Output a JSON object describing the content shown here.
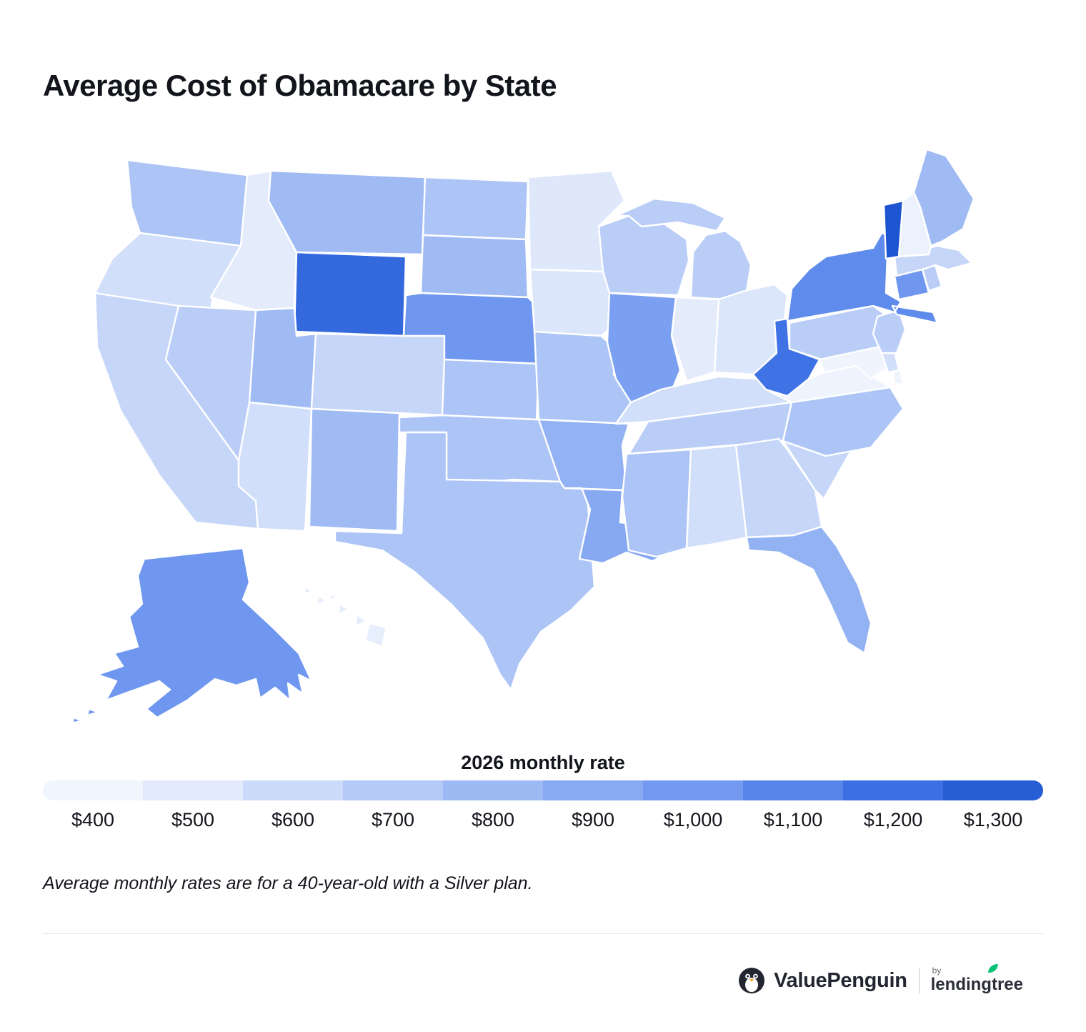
{
  "title": "Average Cost of Obamacare by State",
  "legend": {
    "title": "2026 monthly rate"
  },
  "footnote": "Average monthly rates are for a 40-year-old with a Silver plan.",
  "logo": {
    "brand": "ValuePenguin",
    "by": "by",
    "partner": "lendingtree"
  },
  "chart_data": {
    "type": "heatmap",
    "subtype": "us-choropleth",
    "title": "Average Cost of Obamacare by State",
    "legend_title": "2026 monthly rate",
    "value_unit": "USD per month",
    "scale": {
      "min": 400,
      "max": 1300,
      "tick_labels": [
        "$400",
        "$500",
        "$600",
        "$700",
        "$800",
        "$900",
        "$1,000",
        "$1,100",
        "$1,200",
        "$1,300"
      ],
      "low_color": "#f8fafe",
      "high_color": "#1d55d0"
    },
    "states": [
      {
        "abbr": "AL",
        "name": "Alabama",
        "value": 600
      },
      {
        "abbr": "AK",
        "name": "Alaska",
        "value": 1000
      },
      {
        "abbr": "AZ",
        "name": "Arizona",
        "value": 600
      },
      {
        "abbr": "AR",
        "name": "Arkansas",
        "value": 850
      },
      {
        "abbr": "CA",
        "name": "California",
        "value": 650
      },
      {
        "abbr": "CO",
        "name": "Colorado",
        "value": 650
      },
      {
        "abbr": "CT",
        "name": "Connecticut",
        "value": 1000
      },
      {
        "abbr": "DE",
        "name": "Delaware",
        "value": 600
      },
      {
        "abbr": "FL",
        "name": "Florida",
        "value": 850
      },
      {
        "abbr": "GA",
        "name": "Georgia",
        "value": 650
      },
      {
        "abbr": "HI",
        "name": "Hawaii",
        "value": 500
      },
      {
        "abbr": "ID",
        "name": "Idaho",
        "value": 520
      },
      {
        "abbr": "IL",
        "name": "Illinois",
        "value": 950
      },
      {
        "abbr": "IN",
        "name": "Indiana",
        "value": 520
      },
      {
        "abbr": "IA",
        "name": "Iowa",
        "value": 560
      },
      {
        "abbr": "KS",
        "name": "Kansas",
        "value": 750
      },
      {
        "abbr": "KY",
        "name": "Kentucky",
        "value": 600
      },
      {
        "abbr": "LA",
        "name": "Louisiana",
        "value": 900
      },
      {
        "abbr": "ME",
        "name": "Maine",
        "value": 800
      },
      {
        "abbr": "MD",
        "name": "Maryland",
        "value": 450
      },
      {
        "abbr": "MA",
        "name": "Massachusetts",
        "value": 650
      },
      {
        "abbr": "MI",
        "name": "Michigan",
        "value": 700
      },
      {
        "abbr": "MN",
        "name": "Minnesota",
        "value": 550
      },
      {
        "abbr": "MS",
        "name": "Mississippi",
        "value": 750
      },
      {
        "abbr": "MO",
        "name": "Missouri",
        "value": 750
      },
      {
        "abbr": "MT",
        "name": "Montana",
        "value": 800
      },
      {
        "abbr": "NE",
        "name": "Nebraska",
        "value": 1000
      },
      {
        "abbr": "NV",
        "name": "Nevada",
        "value": 700
      },
      {
        "abbr": "NH",
        "name": "New Hampshire",
        "value": 470
      },
      {
        "abbr": "NJ",
        "name": "New Jersey",
        "value": 700
      },
      {
        "abbr": "NM",
        "name": "New Mexico",
        "value": 800
      },
      {
        "abbr": "NY",
        "name": "New York",
        "value": 1050
      },
      {
        "abbr": "NC",
        "name": "North Carolina",
        "value": 750
      },
      {
        "abbr": "ND",
        "name": "North Dakota",
        "value": 750
      },
      {
        "abbr": "OH",
        "name": "Ohio",
        "value": 560
      },
      {
        "abbr": "OK",
        "name": "Oklahoma",
        "value": 750
      },
      {
        "abbr": "OR",
        "name": "Oregon",
        "value": 600
      },
      {
        "abbr": "PA",
        "name": "Pennsylvania",
        "value": 700
      },
      {
        "abbr": "RI",
        "name": "Rhode Island",
        "value": 700
      },
      {
        "abbr": "SC",
        "name": "South Carolina",
        "value": 650
      },
      {
        "abbr": "SD",
        "name": "South Dakota",
        "value": 800
      },
      {
        "abbr": "TN",
        "name": "Tennessee",
        "value": 700
      },
      {
        "abbr": "TX",
        "name": "Texas",
        "value": 750
      },
      {
        "abbr": "UT",
        "name": "Utah",
        "value": 800
      },
      {
        "abbr": "VT",
        "name": "Vermont",
        "value": 1300
      },
      {
        "abbr": "VA",
        "name": "Virginia",
        "value": 460
      },
      {
        "abbr": "WA",
        "name": "Washington",
        "value": 750
      },
      {
        "abbr": "WV",
        "name": "West Virginia",
        "value": 1150
      },
      {
        "abbr": "WI",
        "name": "Wisconsin",
        "value": 700
      },
      {
        "abbr": "WY",
        "name": "Wyoming",
        "value": 1200
      }
    ]
  }
}
